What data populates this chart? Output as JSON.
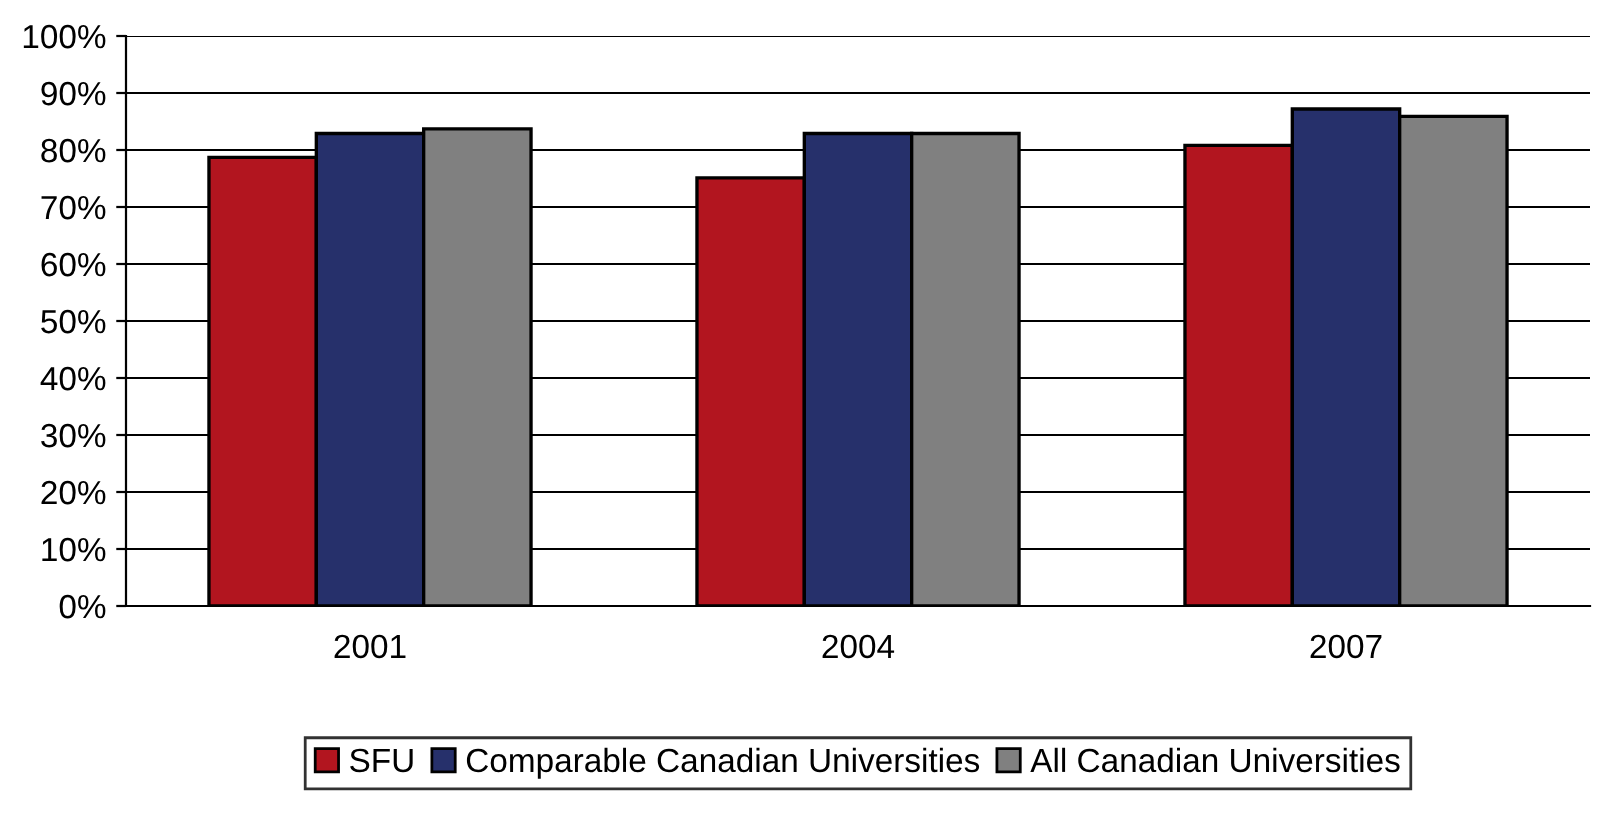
{
  "chart_data": {
    "type": "bar",
    "categories": [
      "2001",
      "2004",
      "2007"
    ],
    "series": [
      {
        "name": "SFU",
        "color": "#b2151f",
        "values": [
          78.7,
          75.1,
          80.8
        ]
      },
      {
        "name": "Comparable Canadian Universities",
        "color": "#26306b",
        "values": [
          82.9,
          82.9,
          87.2
        ]
      },
      {
        "name": "All Canadian Universities",
        "color": "#808080",
        "values": [
          83.7,
          82.9,
          85.9
        ]
      }
    ],
    "ylim": [
      0,
      100
    ],
    "yticks": [
      {
        "value": 0,
        "label": "0%"
      },
      {
        "value": 10,
        "label": "10%"
      },
      {
        "value": 20,
        "label": "20%"
      },
      {
        "value": 30,
        "label": "30%"
      },
      {
        "value": 40,
        "label": "40%"
      },
      {
        "value": 50,
        "label": "50%"
      },
      {
        "value": 60,
        "label": "60%"
      },
      {
        "value": 70,
        "label": "70%"
      },
      {
        "value": 80,
        "label": "80%"
      },
      {
        "value": 90,
        "label": "90%"
      },
      {
        "value": 100,
        "label": "100%"
      }
    ],
    "grid": "y",
    "legend": "bottom"
  }
}
